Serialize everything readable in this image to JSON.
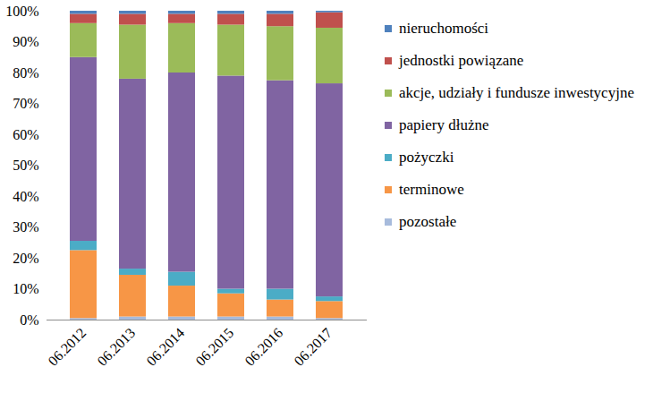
{
  "chart_data": {
    "type": "bar",
    "stacked": true,
    "legend": "right",
    "grid": false,
    "categories": [
      "06.2012",
      "06.2013",
      "06.2014",
      "06.2015",
      "06.2016",
      "06.2017"
    ],
    "series": [
      {
        "name": "pozostałe",
        "color": "#a7bbdc",
        "values": [
          0.5,
          1,
          1,
          1,
          1,
          0.5
        ]
      },
      {
        "name": "terminowe",
        "color": "#f79646",
        "values": [
          22,
          13.5,
          10,
          7.5,
          5.5,
          5.5
        ]
      },
      {
        "name": "pożyczki",
        "color": "#4bacc6",
        "values": [
          3,
          2,
          4.5,
          1.5,
          3.5,
          1.5
        ]
      },
      {
        "name": "papiery dłużne",
        "color": "#8064a2",
        "values": [
          59.5,
          61.5,
          64.5,
          69,
          67.5,
          69
        ]
      },
      {
        "name": "akcje, udziały i fundusze inwestycyjne",
        "color": "#9bbb59",
        "values": [
          11,
          17.5,
          16,
          16.5,
          17.5,
          18
        ]
      },
      {
        "name": "jednostki powiązane",
        "color": "#c0504d",
        "values": [
          3,
          3.5,
          3,
          3.5,
          4,
          5
        ]
      },
      {
        "name": "nieruchomości",
        "color": "#4f81bd",
        "values": [
          1,
          1,
          1,
          1,
          1,
          0.5
        ]
      }
    ],
    "ylim": [
      0,
      100
    ],
    "yticks": [
      {
        "value": 0,
        "label": "0%"
      },
      {
        "value": 10,
        "label": "10%"
      },
      {
        "value": 20,
        "label": "20%"
      },
      {
        "value": 30,
        "label": "30%"
      },
      {
        "value": 40,
        "label": "40%"
      },
      {
        "value": 50,
        "label": "50%"
      },
      {
        "value": 60,
        "label": "60%"
      },
      {
        "value": 70,
        "label": "70%"
      },
      {
        "value": 80,
        "label": "80%"
      },
      {
        "value": 90,
        "label": "90%"
      },
      {
        "value": 100,
        "label": "100%"
      }
    ]
  }
}
